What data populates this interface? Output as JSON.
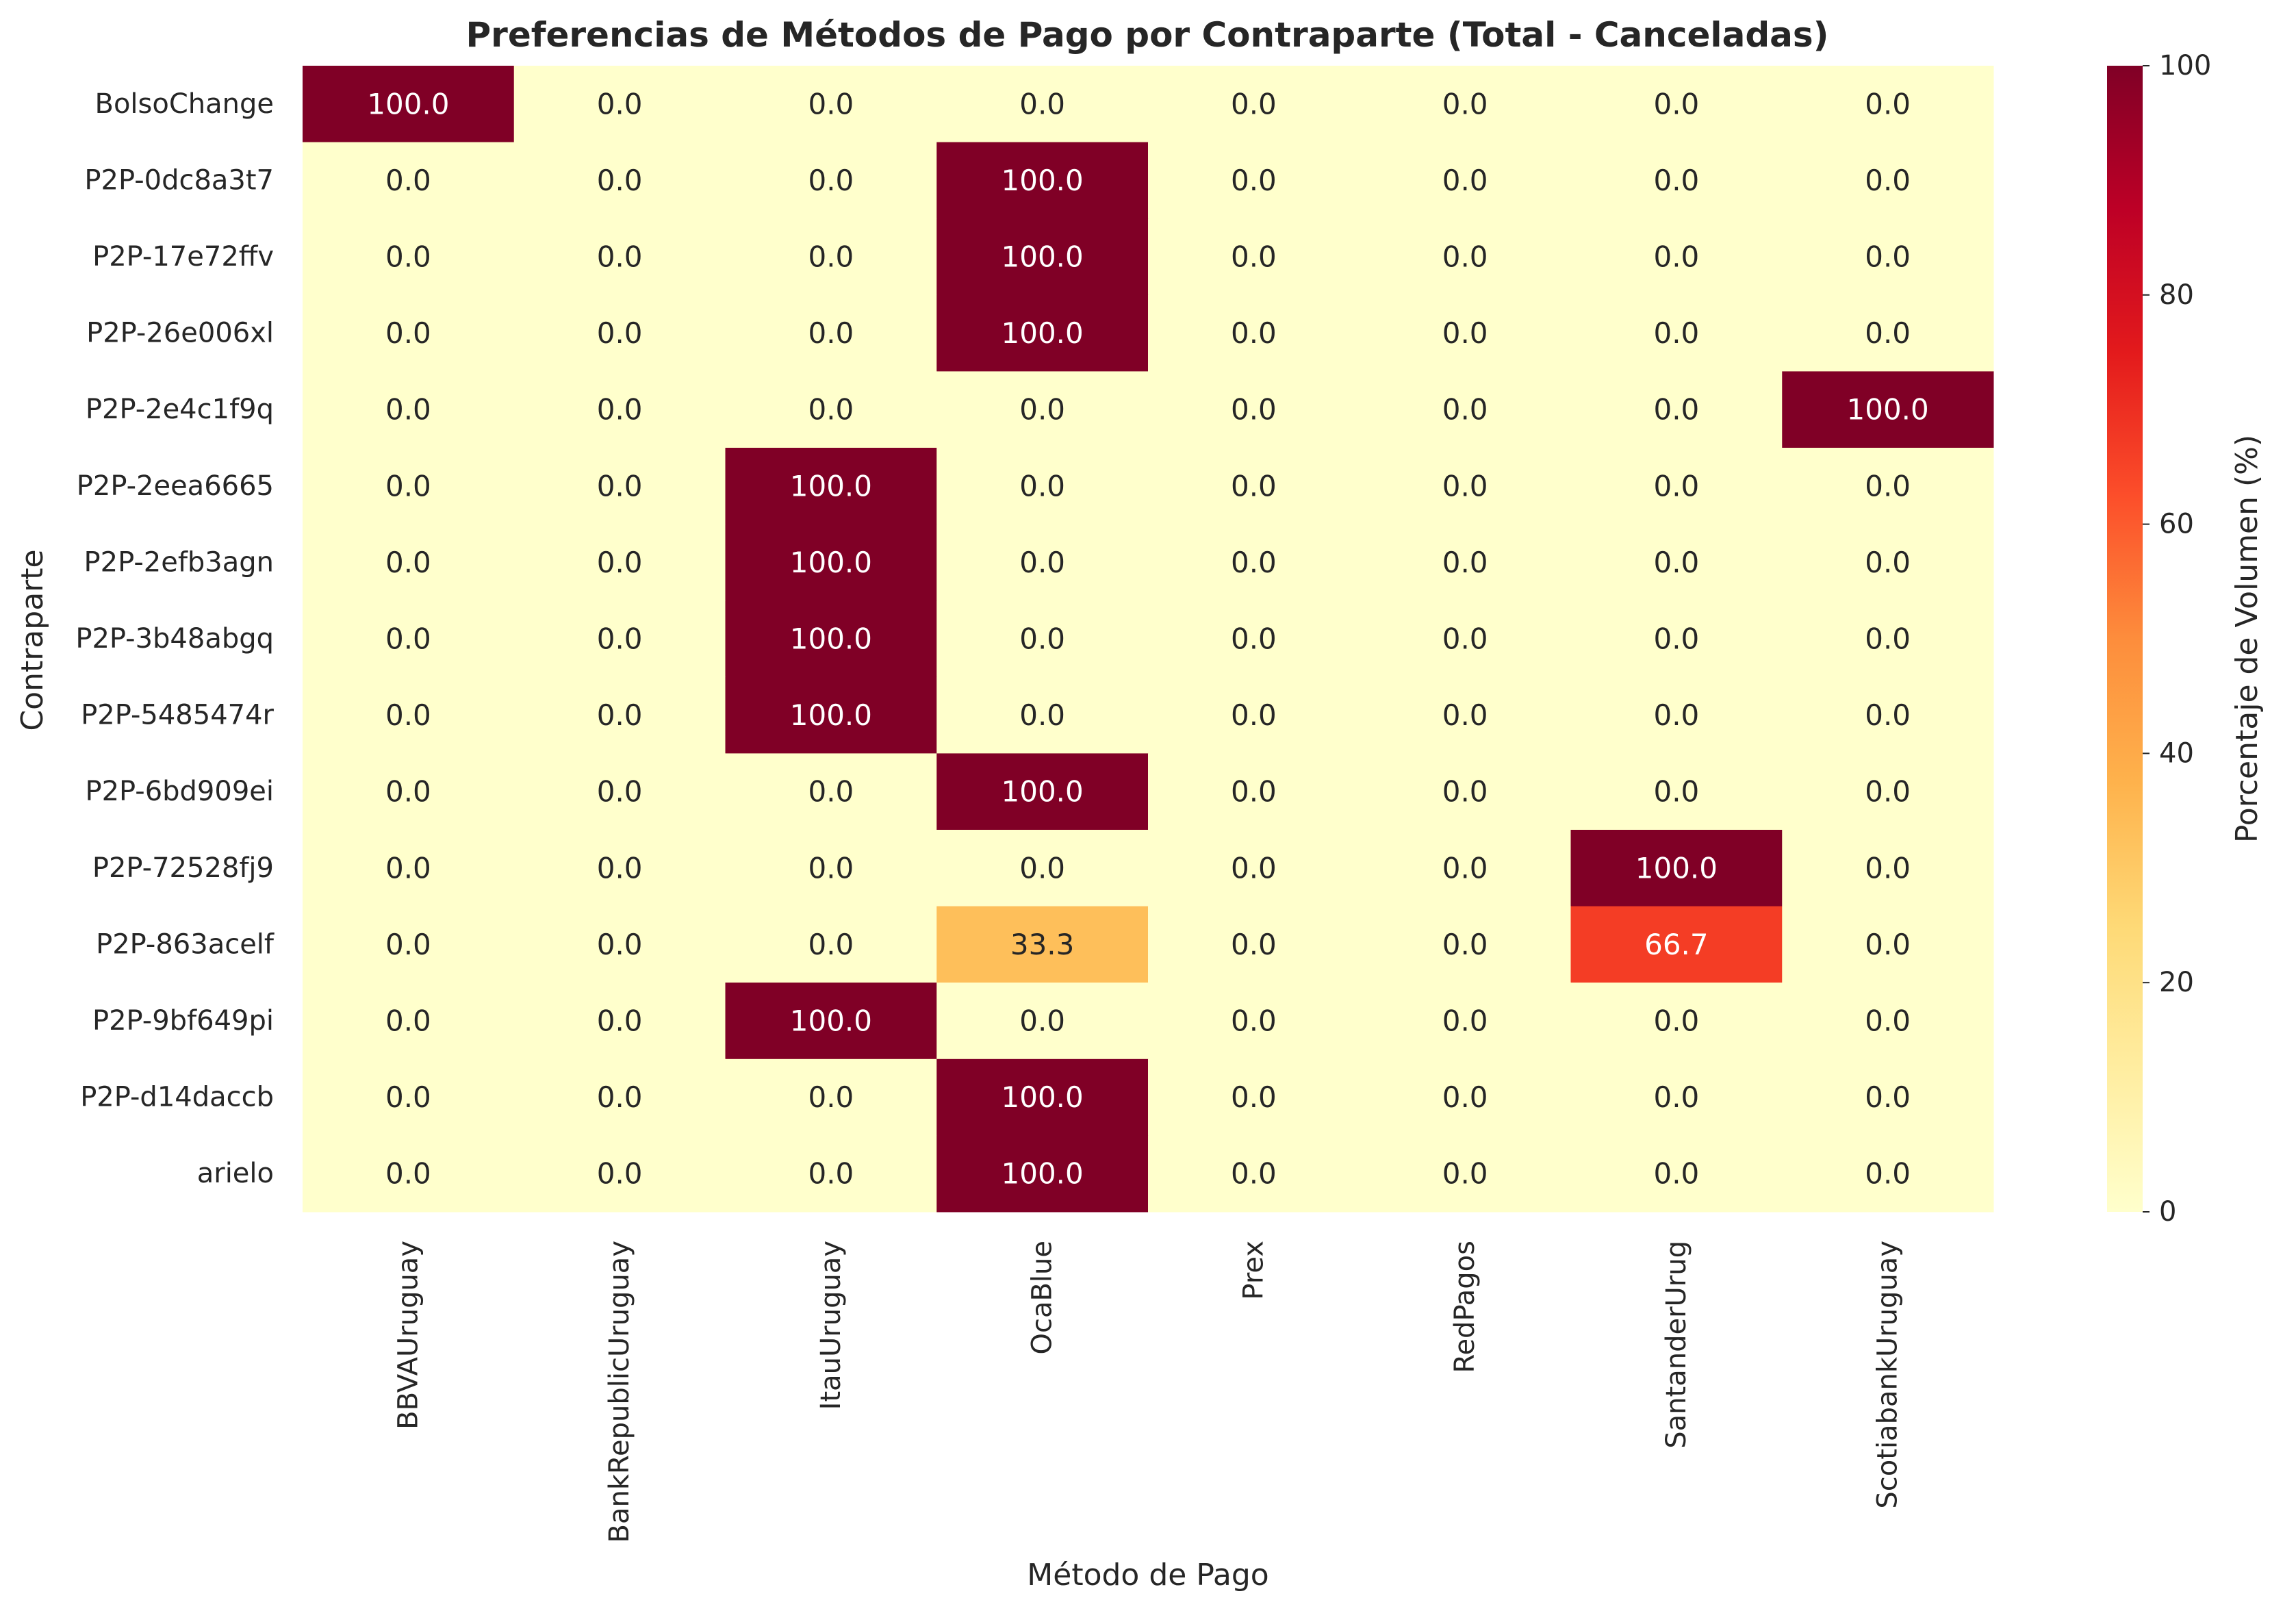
{
  "chart_data": {
    "type": "heatmap",
    "title": "Preferencias de Métodos de Pago por Contraparte (Total - Canceladas)",
    "xlabel": "Método de Pago",
    "ylabel": "Contraparte",
    "colorbar_label": "Porcentaje de Volumen (%)",
    "colormap": "YlOrRd",
    "value_range": [
      0,
      100
    ],
    "colorbar_ticks": [
      "0",
      "20",
      "40",
      "60",
      "80",
      "100"
    ],
    "value_format": "0.1f",
    "columns": [
      "BBVAUruguay",
      "BankRepublicUruguay",
      "ItauUruguay",
      "OcaBlue",
      "Prex",
      "RedPagos",
      "SantanderUrug",
      "ScotiabankUruguay"
    ],
    "rows": [
      "BolsoChange",
      "P2P-0dc8a3t7",
      "P2P-17e72ffv",
      "P2P-26e006xl",
      "P2P-2e4c1f9q",
      "P2P-2eea6665",
      "P2P-2efb3agn",
      "P2P-3b48abgq",
      "P2P-5485474r",
      "P2P-6bd909ei",
      "P2P-72528fj9",
      "P2P-863acelf",
      "P2P-9bf649pi",
      "P2P-d14daccb",
      "arielo"
    ],
    "values": [
      [
        100.0,
        0.0,
        0.0,
        0.0,
        0.0,
        0.0,
        0.0,
        0.0
      ],
      [
        0.0,
        0.0,
        0.0,
        100.0,
        0.0,
        0.0,
        0.0,
        0.0
      ],
      [
        0.0,
        0.0,
        0.0,
        100.0,
        0.0,
        0.0,
        0.0,
        0.0
      ],
      [
        0.0,
        0.0,
        0.0,
        100.0,
        0.0,
        0.0,
        0.0,
        0.0
      ],
      [
        0.0,
        0.0,
        0.0,
        0.0,
        0.0,
        0.0,
        0.0,
        100.0
      ],
      [
        0.0,
        0.0,
        100.0,
        0.0,
        0.0,
        0.0,
        0.0,
        0.0
      ],
      [
        0.0,
        0.0,
        100.0,
        0.0,
        0.0,
        0.0,
        0.0,
        0.0
      ],
      [
        0.0,
        0.0,
        100.0,
        0.0,
        0.0,
        0.0,
        0.0,
        0.0
      ],
      [
        0.0,
        0.0,
        100.0,
        0.0,
        0.0,
        0.0,
        0.0,
        0.0
      ],
      [
        0.0,
        0.0,
        0.0,
        100.0,
        0.0,
        0.0,
        0.0,
        0.0
      ],
      [
        0.0,
        0.0,
        0.0,
        0.0,
        0.0,
        0.0,
        100.0,
        0.0
      ],
      [
        0.0,
        0.0,
        0.0,
        33.3,
        0.0,
        0.0,
        66.7,
        0.0
      ],
      [
        0.0,
        0.0,
        100.0,
        0.0,
        0.0,
        0.0,
        0.0,
        0.0
      ],
      [
        0.0,
        0.0,
        0.0,
        100.0,
        0.0,
        0.0,
        0.0,
        0.0
      ],
      [
        0.0,
        0.0,
        0.0,
        100.0,
        0.0,
        0.0,
        0.0,
        0.0
      ]
    ]
  }
}
